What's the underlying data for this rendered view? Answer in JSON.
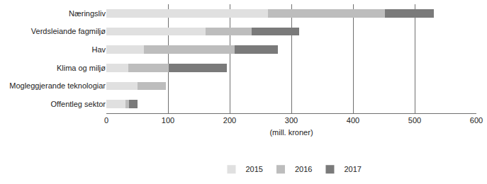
{
  "chart_data": {
    "type": "bar",
    "orientation": "horizontal",
    "stacked": true,
    "categories": [
      "Næringsliv",
      "Verdsleiande fagmiljø",
      "Hav",
      "Klima og miljø",
      "Mogleggjerande teknologiar",
      "Offentleg sektor"
    ],
    "series": [
      {
        "name": "2015",
        "color": "#e0e0e0",
        "values": [
          262,
          161,
          61,
          36,
          51,
          31
        ]
      },
      {
        "name": "2016",
        "color": "#bdbdbd",
        "values": [
          190,
          75,
          147,
          65,
          45,
          6
        ]
      },
      {
        "name": "2017",
        "color": "#7a7a7a",
        "values": [
          79,
          77,
          70,
          94,
          0,
          13
        ]
      }
    ],
    "x_label": "(mill. kroner)",
    "xlim": [
      0,
      600
    ],
    "xticks": [
      0,
      100,
      200,
      300,
      400,
      500,
      600
    ],
    "grid": true,
    "legend": "bottom"
  }
}
